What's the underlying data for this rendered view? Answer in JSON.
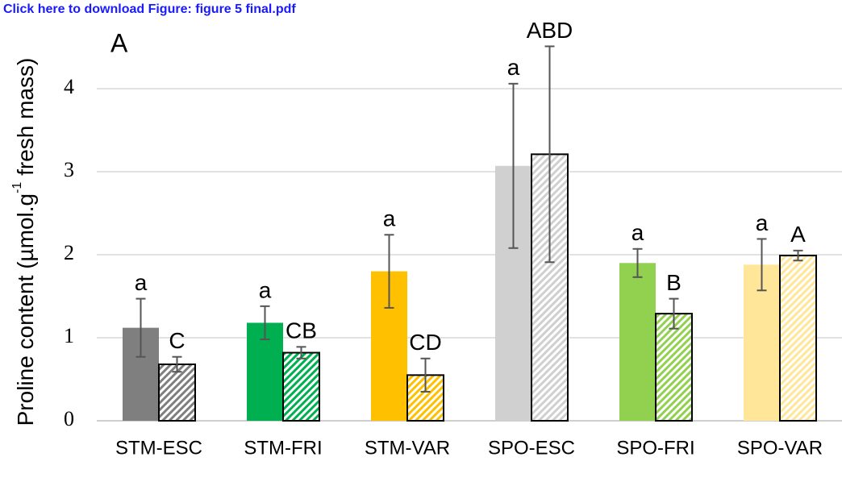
{
  "chart_data": {
    "type": "bar",
    "link": "Click here to download Figure: figure 5 final.pdf",
    "panel": "A",
    "y_label": [
      "Proline content (µmol.g",
      "-1",
      " fresh mass)"
    ],
    "categories": [
      "STM-ESC",
      "STM-FRI",
      "STM-VAR",
      "SPO-ESC",
      "SPO-FRI",
      "SPO-VAR"
    ],
    "colors": [
      "#7f7f7f",
      "#00b050",
      "#ffc000",
      "#d0d0d0",
      "#92d050",
      "#ffe699"
    ],
    "series": [
      {
        "style": "solid",
        "values": [
          1.12,
          1.18,
          1.8,
          3.07,
          1.9,
          1.88
        ],
        "errors": [
          0.35,
          0.2,
          0.44,
          0.99,
          0.17,
          0.31
        ],
        "letters": [
          "a",
          "a",
          "a",
          "a",
          "a",
          "a"
        ]
      },
      {
        "style": "hatched",
        "values": [
          0.68,
          0.82,
          0.55,
          3.21,
          1.29,
          1.99
        ],
        "errors": [
          0.09,
          0.07,
          0.2,
          1.3,
          0.18,
          0.06
        ],
        "letters": [
          "C",
          "CB",
          "CD",
          "ABD",
          "B",
          "A"
        ]
      }
    ],
    "ylim": [
      0,
      5
    ],
    "yticks": [
      0,
      1,
      2,
      3,
      4
    ],
    "grid": true
  }
}
